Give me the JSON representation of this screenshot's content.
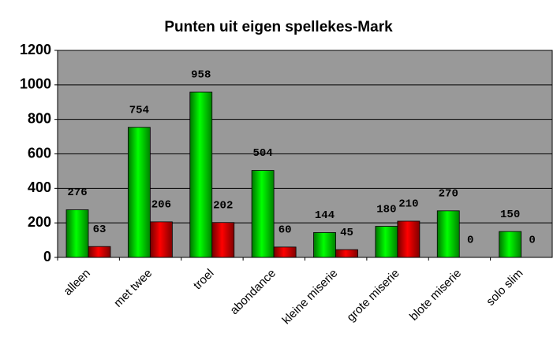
{
  "chart_data": {
    "type": "bar",
    "title": "Punten uit eigen spellekes-Mark",
    "categories": [
      "alleen",
      "met twee",
      "troel",
      "abondance",
      "kleine miserie",
      "grote miserie",
      "blote miserie",
      "solo slim"
    ],
    "series": [
      {
        "color": "#00ff00",
        "values": [
          276,
          754,
          958,
          504,
          144,
          180,
          270,
          150
        ]
      },
      {
        "color": "#ff0000",
        "values": [
          63,
          206,
          202,
          60,
          45,
          210,
          0,
          0
        ]
      }
    ],
    "ylim": [
      0,
      1200
    ],
    "yticks": [
      0,
      200,
      400,
      600,
      800,
      1000,
      1200
    ],
    "grid": true,
    "plot_background": "#999999"
  }
}
